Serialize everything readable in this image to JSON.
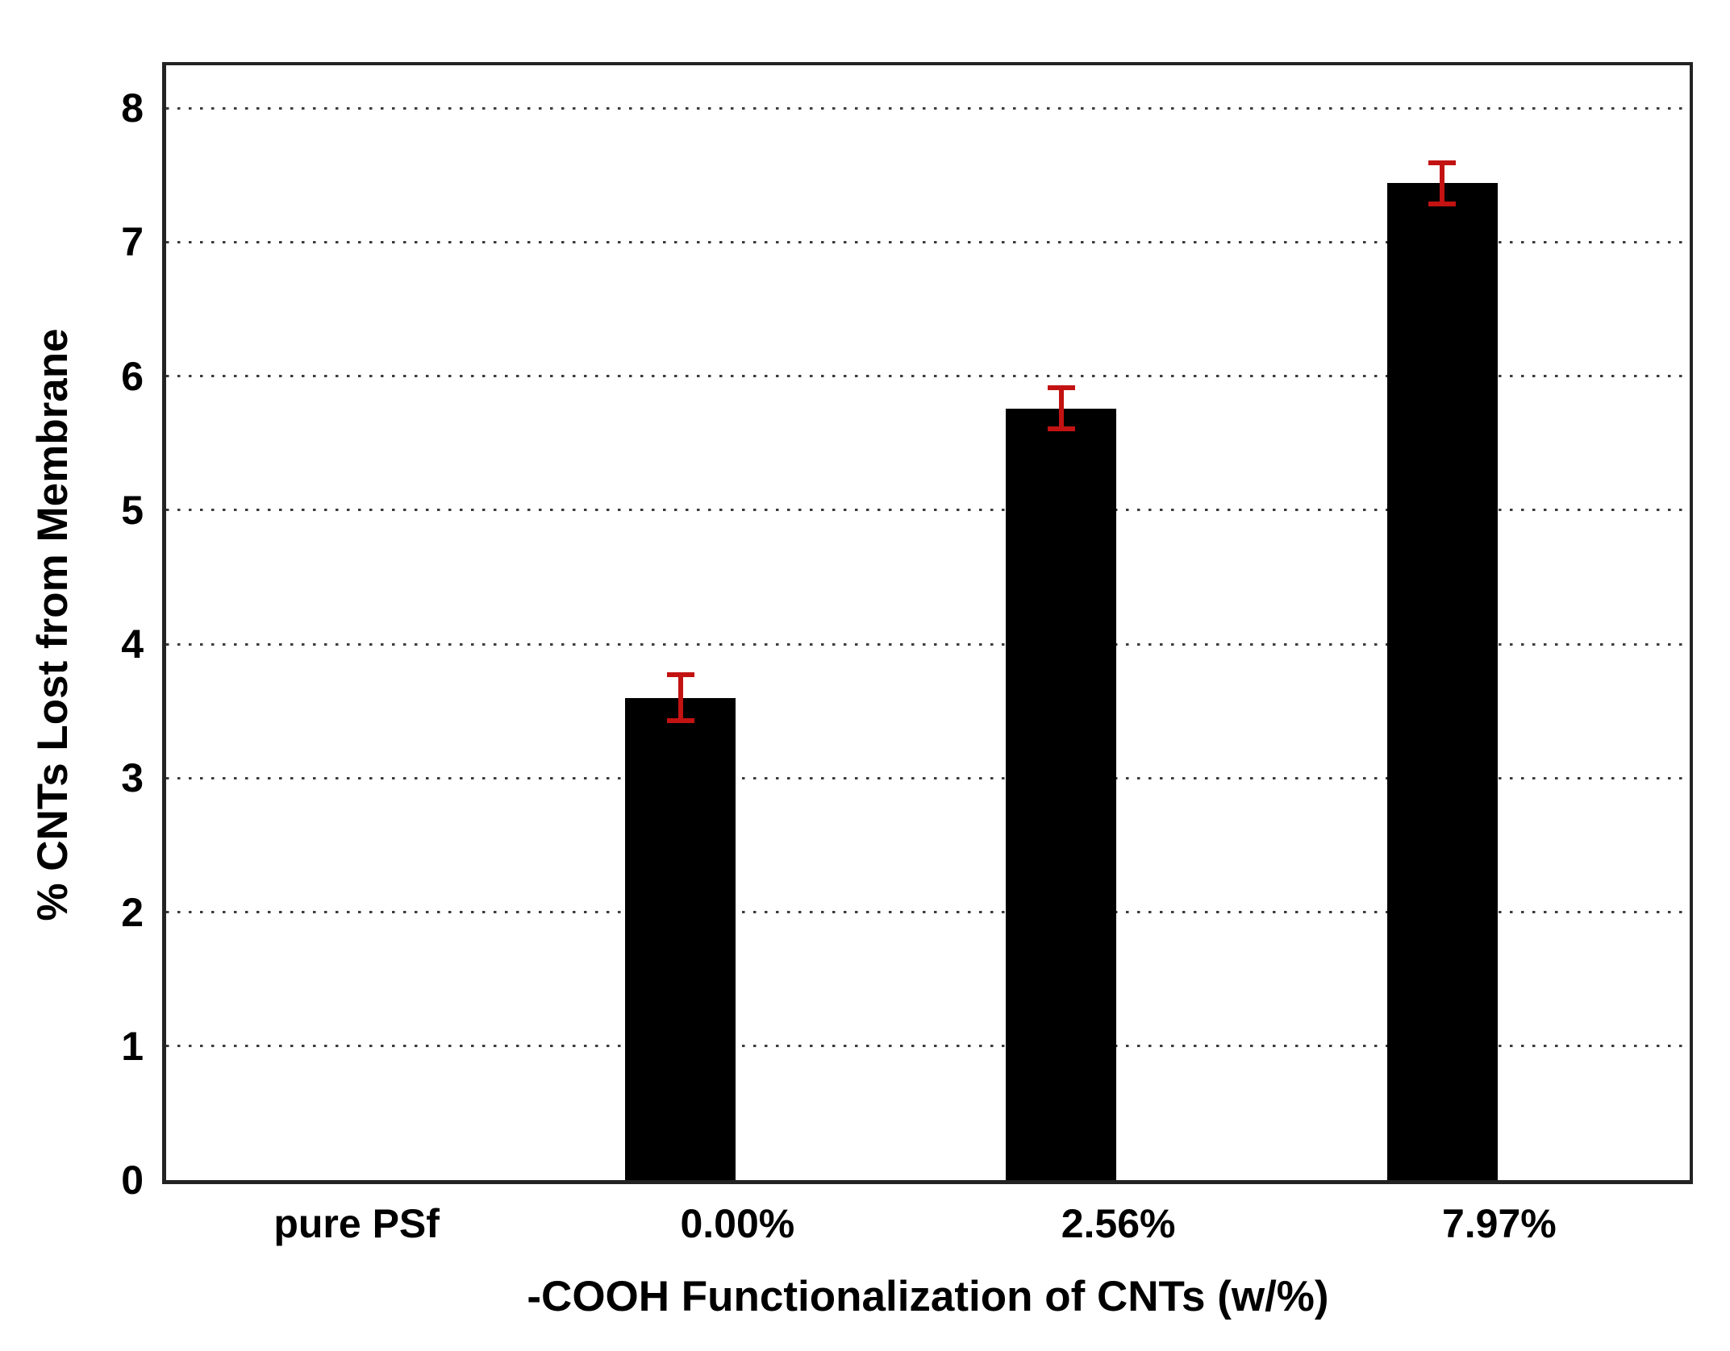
{
  "chart_data": {
    "type": "bar",
    "title": "",
    "categories": [
      "pure PSf",
      "0.00%",
      "2.56%",
      "7.97%"
    ],
    "values": [
      0,
      3.6,
      5.76,
      7.44
    ],
    "errors": [
      null,
      0.19,
      0.17,
      0.17
    ],
    "xlabel": "-COOH Functionalization of CNTs (w/%)",
    "ylabel": "% CNTs Lost from Membrane",
    "ylim": [
      0,
      8.32
    ],
    "yticks": [
      0,
      1,
      2,
      3,
      4,
      5,
      6,
      7,
      8
    ],
    "grid": "horizontal-dotted",
    "legend_position": "none",
    "colors": {
      "bar": "#000000",
      "error_bar": "#c31212",
      "gridline": "#3c3c3c",
      "axis_border": "#232323",
      "text": "#000000",
      "background": "#ffffff"
    }
  }
}
